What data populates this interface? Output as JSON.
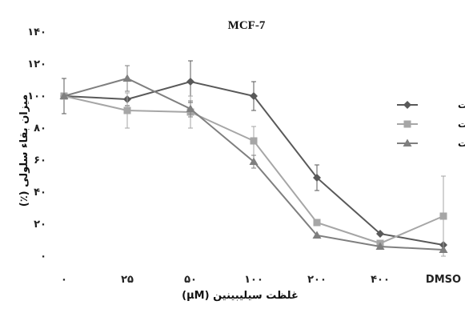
{
  "chart_data": {
    "type": "line",
    "title": "MCF-7",
    "xlabel": "غلظت سیلیبینین (µM)",
    "ylabel": "میزان بقاء سلولی (٪)",
    "categories": [
      "۰",
      "۲۵",
      "۵۰",
      "۱۰۰",
      "۲۰۰",
      "۴۰۰",
      "DMSO"
    ],
    "ylim": [
      0,
      140
    ],
    "yticks": [
      0,
      20,
      40,
      60,
      80,
      100,
      120,
      140
    ],
    "ytick_labels": [
      "۰",
      "۲۰",
      "۴۰",
      "۶۰",
      "۸۰",
      "۱۰۰",
      "۱۲۰",
      "۱۴۰"
    ],
    "grid": false,
    "legend_position": "right",
    "series": [
      {
        "name": "۲۴ ساعت",
        "color": "#595959",
        "marker": "diamond",
        "values": [
          100,
          98,
          109,
          100,
          49,
          14,
          7
        ],
        "errors": [
          11,
          4,
          13,
          9,
          8,
          0,
          0
        ]
      },
      {
        "name": "۴۸ ساعت",
        "color": "#a6a6a6",
        "marker": "square",
        "values": [
          100,
          91,
          90,
          72,
          21,
          8,
          25
        ],
        "errors": [
          0,
          11,
          10,
          9,
          0,
          0,
          25
        ]
      },
      {
        "name": "۷۲ ساعت",
        "color": "#7f7f7f",
        "marker": "triangle",
        "values": [
          100,
          111,
          92,
          59,
          13,
          6,
          4
        ],
        "errors": [
          0,
          8,
          5,
          4,
          0,
          0,
          0
        ]
      }
    ]
  }
}
